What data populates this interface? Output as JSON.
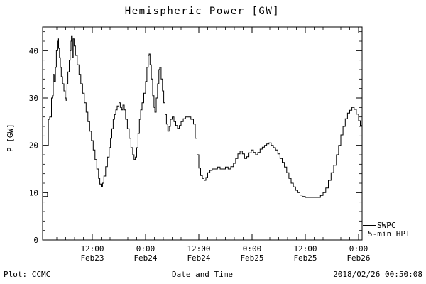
{
  "title": "Hemispheric Power [GW]",
  "footer": {
    "plot_credit": "Plot: CCMC",
    "timestamp": "2018/02/26 00:50:08"
  },
  "legend": {
    "line1": "SWPC",
    "line2": "5-min HPI"
  },
  "colors": {
    "line": "#000000",
    "frame": "#000000",
    "background": "#ffffff"
  },
  "chart_data": {
    "type": "line",
    "title": "Hemispheric Power [GW]",
    "xlabel": "Date and Time",
    "ylabel": "P [GW]",
    "x_unit": "hours since Feb23 00:00",
    "xlim": [
      0.8,
      72.8
    ],
    "ylim": [
      0,
      45
    ],
    "grid": false,
    "legend_position": "outside-right-bottom",
    "y_ticks": [
      0,
      10,
      20,
      30,
      40
    ],
    "x_ticks": [
      {
        "hour": 12,
        "line1": "12:00",
        "line2": "Feb23"
      },
      {
        "hour": 24,
        "line1": "0:00",
        "line2": "Feb24"
      },
      {
        "hour": 36,
        "line1": "12:00",
        "line2": "Feb24"
      },
      {
        "hour": 48,
        "line1": "0:00",
        "line2": "Feb25"
      },
      {
        "hour": 60,
        "line1": "12:00",
        "line2": "Feb25"
      },
      {
        "hour": 72,
        "line1": "0:00",
        "line2": "Feb26"
      }
    ],
    "series": [
      {
        "name": "SWPC 5-min HPI",
        "points": [
          [
            0.9,
            9.2
          ],
          [
            1.7,
            9.2
          ],
          [
            1.9,
            10
          ],
          [
            2.0,
            20
          ],
          [
            2.1,
            25.5
          ],
          [
            2.4,
            26
          ],
          [
            2.7,
            26
          ],
          [
            2.8,
            30
          ],
          [
            3.0,
            30.5
          ],
          [
            3.2,
            35
          ],
          [
            3.4,
            33.5
          ],
          [
            3.7,
            36.5
          ],
          [
            3.9,
            40
          ],
          [
            4.1,
            42
          ],
          [
            4.2,
            42.5
          ],
          [
            4.4,
            40.5
          ],
          [
            4.6,
            38.5
          ],
          [
            4.8,
            36.5
          ],
          [
            5.0,
            34.5
          ],
          [
            5.3,
            33
          ],
          [
            5.6,
            31.5
          ],
          [
            5.9,
            30
          ],
          [
            6.1,
            29.5
          ],
          [
            6.3,
            33
          ],
          [
            6.5,
            35.5
          ],
          [
            6.8,
            38
          ],
          [
            7.0,
            40
          ],
          [
            7.2,
            42
          ],
          [
            7.3,
            43
          ],
          [
            7.5,
            38.5
          ],
          [
            7.7,
            42.5
          ],
          [
            7.9,
            41
          ],
          [
            8.2,
            39
          ],
          [
            8.6,
            37
          ],
          [
            9.0,
            35
          ],
          [
            9.4,
            33
          ],
          [
            9.8,
            31
          ],
          [
            10.2,
            29
          ],
          [
            10.6,
            27
          ],
          [
            11.0,
            25
          ],
          [
            11.4,
            23
          ],
          [
            11.8,
            21
          ],
          [
            12.2,
            19
          ],
          [
            12.6,
            17
          ],
          [
            13.0,
            15
          ],
          [
            13.4,
            13
          ],
          [
            13.7,
            11.8
          ],
          [
            14.0,
            11.3
          ],
          [
            14.3,
            12
          ],
          [
            14.6,
            13.5
          ],
          [
            15.0,
            15.5
          ],
          [
            15.4,
            17.5
          ],
          [
            15.8,
            19.5
          ],
          [
            16.1,
            21.5
          ],
          [
            16.4,
            23.5
          ],
          [
            16.7,
            25.5
          ],
          [
            17.0,
            26.5
          ],
          [
            17.3,
            27.5
          ],
          [
            17.6,
            28.3
          ],
          [
            18.0,
            29
          ],
          [
            18.3,
            28
          ],
          [
            18.6,
            27.5
          ],
          [
            18.9,
            28.5
          ],
          [
            19.2,
            27.5
          ],
          [
            19.5,
            25.5
          ],
          [
            19.9,
            23.5
          ],
          [
            20.3,
            21.5
          ],
          [
            20.7,
            19.5
          ],
          [
            21.1,
            18
          ],
          [
            21.4,
            17
          ],
          [
            21.7,
            17.5
          ],
          [
            22.0,
            19.5
          ],
          [
            22.3,
            22.5
          ],
          [
            22.6,
            25.5
          ],
          [
            22.9,
            27.5
          ],
          [
            23.2,
            29
          ],
          [
            23.6,
            31
          ],
          [
            24.0,
            33.5
          ],
          [
            24.3,
            36.5
          ],
          [
            24.6,
            39
          ],
          [
            24.8,
            39.3
          ],
          [
            25.0,
            37
          ],
          [
            25.3,
            34
          ],
          [
            25.6,
            30.5
          ],
          [
            25.9,
            28
          ],
          [
            26.1,
            27
          ],
          [
            26.4,
            30
          ],
          [
            26.7,
            33
          ],
          [
            27.0,
            36
          ],
          [
            27.2,
            36.5
          ],
          [
            27.5,
            34
          ],
          [
            27.8,
            31.5
          ],
          [
            28.1,
            29
          ],
          [
            28.4,
            26.5
          ],
          [
            28.7,
            24.5
          ],
          [
            29.0,
            23
          ],
          [
            29.3,
            24
          ],
          [
            29.6,
            25.5
          ],
          [
            30.0,
            26
          ],
          [
            30.4,
            25
          ],
          [
            30.8,
            24.2
          ],
          [
            31.2,
            23.6
          ],
          [
            31.6,
            24.2
          ],
          [
            32.0,
            25
          ],
          [
            32.5,
            25.6
          ],
          [
            33.0,
            26
          ],
          [
            33.6,
            26
          ],
          [
            34.2,
            25.5
          ],
          [
            34.8,
            24.5
          ],
          [
            35.2,
            21.5
          ],
          [
            35.6,
            18
          ],
          [
            36.0,
            15.2
          ],
          [
            36.4,
            13.6
          ],
          [
            36.8,
            13
          ],
          [
            37.2,
            12.6
          ],
          [
            37.6,
            13.2
          ],
          [
            38.0,
            14.2
          ],
          [
            38.5,
            14.7
          ],
          [
            39.0,
            15
          ],
          [
            39.6,
            15
          ],
          [
            40.2,
            15.4
          ],
          [
            40.8,
            15
          ],
          [
            41.4,
            15
          ],
          [
            42.0,
            15.4
          ],
          [
            42.6,
            15
          ],
          [
            43.2,
            15.5
          ],
          [
            43.8,
            16.2
          ],
          [
            44.3,
            17.2
          ],
          [
            44.8,
            18.2
          ],
          [
            45.3,
            18.8
          ],
          [
            45.8,
            18.2
          ],
          [
            46.3,
            17.2
          ],
          [
            46.8,
            17.6
          ],
          [
            47.3,
            18.4
          ],
          [
            47.8,
            19
          ],
          [
            48.3,
            18.5
          ],
          [
            48.8,
            18
          ],
          [
            49.3,
            18.5
          ],
          [
            49.8,
            19.2
          ],
          [
            50.3,
            19.6
          ],
          [
            50.8,
            20
          ],
          [
            51.3,
            20.3
          ],
          [
            51.8,
            20.5
          ],
          [
            52.3,
            20
          ],
          [
            52.8,
            19.5
          ],
          [
            53.3,
            19
          ],
          [
            53.8,
            18.2
          ],
          [
            54.3,
            17.2
          ],
          [
            54.8,
            16.4
          ],
          [
            55.3,
            15.4
          ],
          [
            55.8,
            14.2
          ],
          [
            56.3,
            13
          ],
          [
            56.8,
            12
          ],
          [
            57.3,
            11.2
          ],
          [
            57.8,
            10.5
          ],
          [
            58.3,
            10
          ],
          [
            58.8,
            9.5
          ],
          [
            59.3,
            9.2
          ],
          [
            60.0,
            9
          ],
          [
            61.0,
            9
          ],
          [
            62.0,
            9
          ],
          [
            62.8,
            9
          ],
          [
            63.4,
            9.4
          ],
          [
            64.0,
            10
          ],
          [
            64.6,
            11
          ],
          [
            65.2,
            12.6
          ],
          [
            65.8,
            14.2
          ],
          [
            66.4,
            15.8
          ],
          [
            67.0,
            18
          ],
          [
            67.5,
            20
          ],
          [
            68.0,
            22.2
          ],
          [
            68.5,
            24
          ],
          [
            69.0,
            25.6
          ],
          [
            69.5,
            26.8
          ],
          [
            70.0,
            27.4
          ],
          [
            70.5,
            28
          ],
          [
            71.0,
            27.6
          ],
          [
            71.5,
            26.6
          ],
          [
            72.0,
            25.2
          ],
          [
            72.4,
            24.2
          ],
          [
            72.8,
            23.6
          ]
        ]
      }
    ]
  }
}
